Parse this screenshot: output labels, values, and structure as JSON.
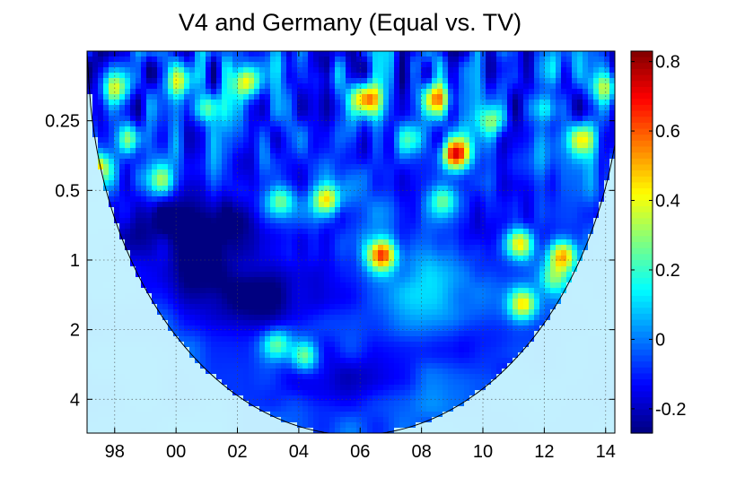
{
  "chart_data": {
    "type": "heatmap",
    "title": "V4 and Germany (Equal vs. TV)",
    "xlabel": "",
    "ylabel": "",
    "x_tick_labels": [
      "98",
      "00",
      "02",
      "04",
      "06",
      "08",
      "10",
      "12",
      "14"
    ],
    "x_tick_values": [
      1998,
      2000,
      2002,
      2004,
      2006,
      2008,
      2010,
      2012,
      2014
    ],
    "xlim": [
      1997.1,
      2014.3
    ],
    "y_tick_labels": [
      "0.25",
      "0.5",
      "1",
      "2",
      "4"
    ],
    "y_tick_values": [
      0.25,
      0.5,
      1,
      2,
      4
    ],
    "ylim": [
      0.125,
      5.6
    ],
    "y_scale": "log2",
    "grid": true,
    "colorbar": {
      "ticks": [
        "0.8",
        "0.6",
        "0.4",
        "0.2",
        "0",
        "-0.2"
      ],
      "tick_values": [
        0.8,
        0.6,
        0.4,
        0.2,
        0,
        -0.2
      ],
      "range": [
        -0.27,
        0.83
      ],
      "colormap": "jet"
    },
    "cone_of_influence": true,
    "background_value": 0.07,
    "base_value_high_freq": -0.1,
    "base_value_low_freq": -0.03,
    "hotspots": [
      {
        "x": 2009.1,
        "period": 0.35,
        "value": 0.82
      },
      {
        "x": 2006.2,
        "period": 0.2,
        "value": 0.66
      },
      {
        "x": 2008.5,
        "period": 0.2,
        "value": 0.55
      },
      {
        "x": 2004.9,
        "period": 0.55,
        "value": 0.6
      },
      {
        "x": 2006.7,
        "period": 0.95,
        "value": 0.72
      },
      {
        "x": 2011.2,
        "period": 0.85,
        "value": 0.6
      },
      {
        "x": 2012.6,
        "period": 0.95,
        "value": 0.62
      },
      {
        "x": 2013.2,
        "period": 0.3,
        "value": 0.45
      },
      {
        "x": 2011.3,
        "period": 1.55,
        "value": 0.55
      },
      {
        "x": 2004.2,
        "period": 2.6,
        "value": 0.45
      },
      {
        "x": 2003.3,
        "period": 2.3,
        "value": 0.35
      },
      {
        "x": 2003.4,
        "period": 0.55,
        "value": 0.4
      },
      {
        "x": 2008.7,
        "period": 0.55,
        "value": 0.35
      },
      {
        "x": 2002.3,
        "period": 0.17,
        "value": 0.55
      },
      {
        "x": 2001.0,
        "period": 0.22,
        "value": 0.45
      },
      {
        "x": 2000.1,
        "period": 0.17,
        "value": 0.45
      },
      {
        "x": 1998.0,
        "period": 0.18,
        "value": 0.5
      },
      {
        "x": 1997.4,
        "period": 0.4,
        "value": 0.55
      },
      {
        "x": 1998.5,
        "period": 0.3,
        "value": 0.4
      },
      {
        "x": 2010.3,
        "period": 0.25,
        "value": 0.4
      },
      {
        "x": 2012.0,
        "period": 0.22,
        "value": 0.45
      },
      {
        "x": 2014.0,
        "period": 0.18,
        "value": 0.4
      },
      {
        "x": 1999.5,
        "period": 0.45,
        "value": 0.35
      },
      {
        "x": 2007.7,
        "period": 0.3,
        "value": 0.35
      },
      {
        "x": 2012.3,
        "period": 1.2,
        "value": 0.35
      }
    ],
    "lows": [
      {
        "x": 2003.0,
        "period": 1.45,
        "value": -0.25
      },
      {
        "x": 1999.5,
        "period": 0.7,
        "value": -0.22
      },
      {
        "x": 2002.0,
        "period": 0.75,
        "value": -0.2
      },
      {
        "x": 2005.0,
        "period": 3.3,
        "value": -0.2
      },
      {
        "x": 2009.5,
        "period": 2.3,
        "value": -0.18
      },
      {
        "x": 2000.5,
        "period": 1.2,
        "value": -0.18
      },
      {
        "x": 2010.0,
        "period": 0.7,
        "value": -0.18
      }
    ]
  }
}
